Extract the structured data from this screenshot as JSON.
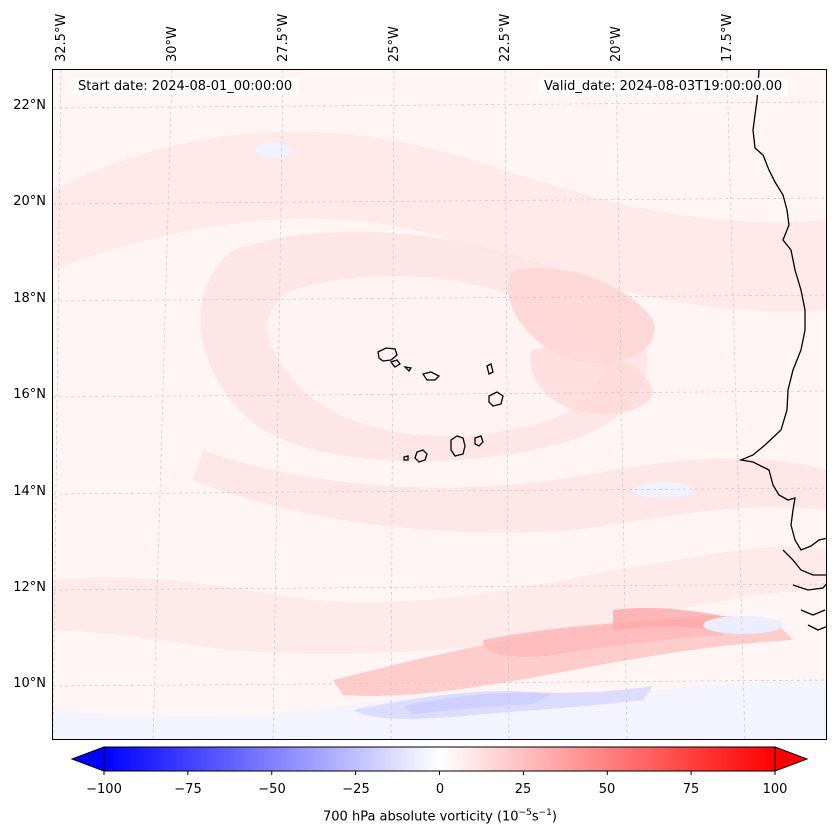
{
  "map": {
    "start_date_label": "Start date: 2024-08-01_00:00:00",
    "valid_date_label": "Valid_date: 2024-08-03T19:00:00.00",
    "lon_labels": [
      "32.5°W",
      "30°W",
      "27.5°W",
      "25°W",
      "22.5°W",
      "20°W",
      "17.5°W"
    ],
    "lat_labels": [
      "22°N",
      "20°N",
      "18°N",
      "16°N",
      "14°N",
      "12°N",
      "10°N"
    ],
    "gridlines": true,
    "coastline_color": "#000000"
  },
  "colorbar": {
    "label_main": "700 hPa absolute vorticity (10",
    "label_exp1": "−5",
    "label_mid": "s",
    "label_exp2": "−1",
    "label_end": ")",
    "tick_labels": [
      "−100",
      "−75",
      "−50",
      "−25",
      "0",
      "25",
      "50",
      "75",
      "100"
    ],
    "min": -100,
    "max": 100,
    "min_color": "#0000ff",
    "mid_color": "#ffffff",
    "max_color": "#ff0000",
    "extend": "both"
  }
}
